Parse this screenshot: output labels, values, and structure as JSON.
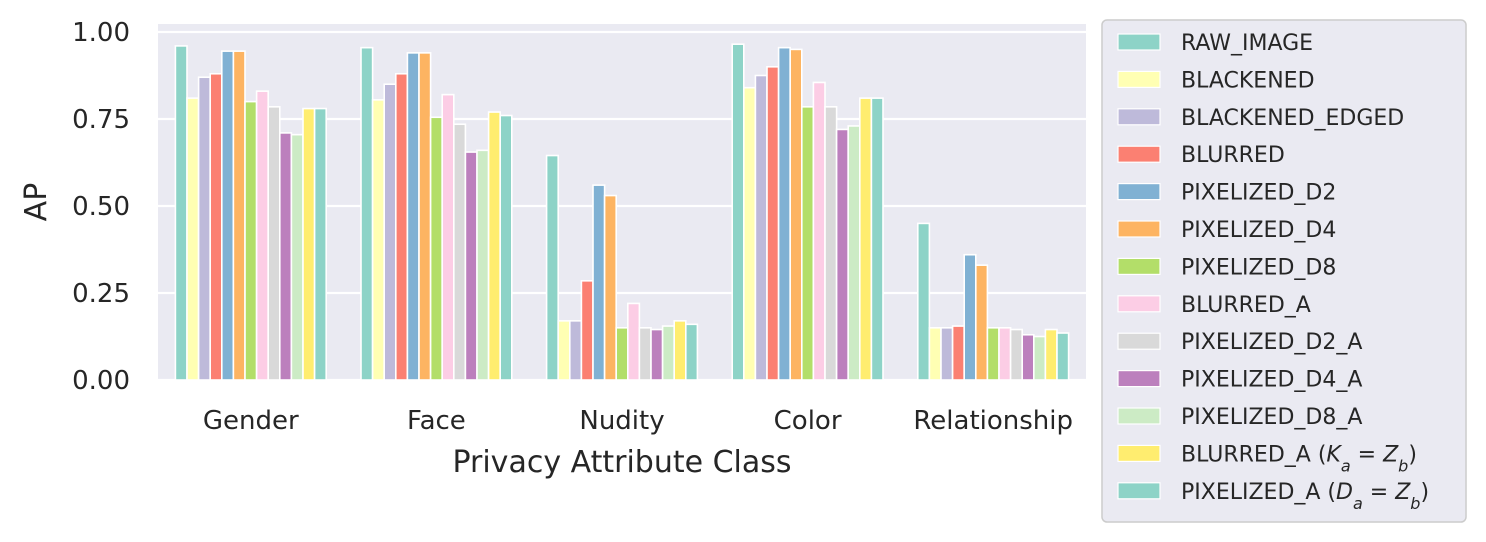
{
  "chart_data": {
    "type": "bar",
    "xlabel": "Privacy Attribute Class",
    "ylabel": "AP",
    "ylim": [
      0,
      1.05
    ],
    "yticks": [
      "0.00",
      "0.25",
      "0.50",
      "0.75",
      "1.00"
    ],
    "grid": true,
    "legend_position": "right",
    "categories": [
      "Gender",
      "Face",
      "Nudity",
      "Color",
      "Relationship"
    ],
    "series": [
      {
        "name": "RAW_IMAGE",
        "color": "#8dd3c7",
        "values": [
          0.96,
          0.955,
          0.645,
          0.965,
          0.45
        ]
      },
      {
        "name": "BLACKENED",
        "color": "#ffffb3",
        "values": [
          0.81,
          0.805,
          0.17,
          0.84,
          0.15
        ]
      },
      {
        "name": "BLACKENED_EDGED",
        "color": "#bebada",
        "values": [
          0.87,
          0.85,
          0.17,
          0.875,
          0.15
        ]
      },
      {
        "name": "BLURRED",
        "color": "#fb8072",
        "values": [
          0.88,
          0.88,
          0.285,
          0.9,
          0.155
        ]
      },
      {
        "name": "PIXELIZED_D2",
        "color": "#80b1d3",
        "values": [
          0.945,
          0.94,
          0.56,
          0.955,
          0.36
        ]
      },
      {
        "name": "PIXELIZED_D4",
        "color": "#fdb462",
        "values": [
          0.945,
          0.94,
          0.53,
          0.95,
          0.33
        ]
      },
      {
        "name": "PIXELIZED_D8",
        "color": "#b3de69",
        "values": [
          0.8,
          0.755,
          0.15,
          0.785,
          0.15
        ]
      },
      {
        "name": "BLURRED_A",
        "color": "#fccde5",
        "values": [
          0.83,
          0.82,
          0.22,
          0.855,
          0.15
        ]
      },
      {
        "name": "PIXELIZED_D2_A",
        "color": "#d9d9d9",
        "values": [
          0.785,
          0.735,
          0.15,
          0.785,
          0.145
        ]
      },
      {
        "name": "PIXELIZED_D4_A",
        "color": "#bc80bd",
        "values": [
          0.71,
          0.655,
          0.145,
          0.72,
          0.13
        ]
      },
      {
        "name": "PIXELIZED_D8_A",
        "color": "#ccebc5",
        "values": [
          0.705,
          0.66,
          0.155,
          0.73,
          0.125
        ]
      },
      {
        "name": "BLURRED_A (K_a = Z_b)",
        "color": "#ffed6f",
        "values": [
          0.78,
          0.77,
          0.17,
          0.81,
          0.145
        ]
      },
      {
        "name": "PIXELIZED_A (D_a = Z_b)",
        "color": "#8dd3c7",
        "values": [
          0.78,
          0.76,
          0.16,
          0.81,
          0.135
        ]
      }
    ]
  }
}
